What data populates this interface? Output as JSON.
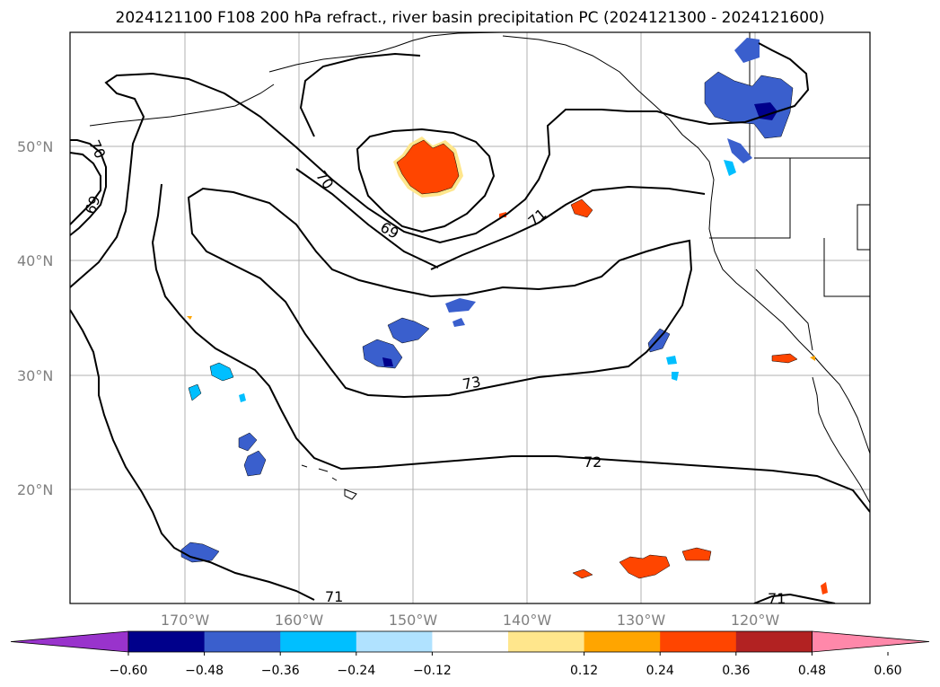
{
  "title": "2024121100 F108 200 hPa refract., river basin precipitation PC (2024121300 - 2024121600)",
  "map": {
    "lat_ticks": [
      "50°N",
      "40°N",
      "30°N",
      "20°N"
    ],
    "lon_ticks": [
      "170°W",
      "160°W",
      "150°W",
      "140°W",
      "130°W",
      "120°W"
    ],
    "grid": true,
    "contour_labels": [
      "70",
      "69",
      "70",
      "69",
      "71",
      "73",
      "72",
      "71",
      "71"
    ],
    "contour_color": "#000000"
  },
  "colorbar": {
    "colors": [
      "#9933cc",
      "#00008b",
      "#3a5fcd",
      "#00bfff",
      "#b0e2ff",
      "#ffffff",
      "#ffe68c",
      "#ffa500",
      "#ff4500",
      "#b22222",
      "#ff88aa"
    ],
    "tick_labels": [
      "−0.60",
      "−0.48",
      "−0.36",
      "−0.24",
      "−0.12",
      "0.12",
      "0.24",
      "0.36",
      "0.48",
      "0.60"
    ],
    "extend": "both"
  }
}
